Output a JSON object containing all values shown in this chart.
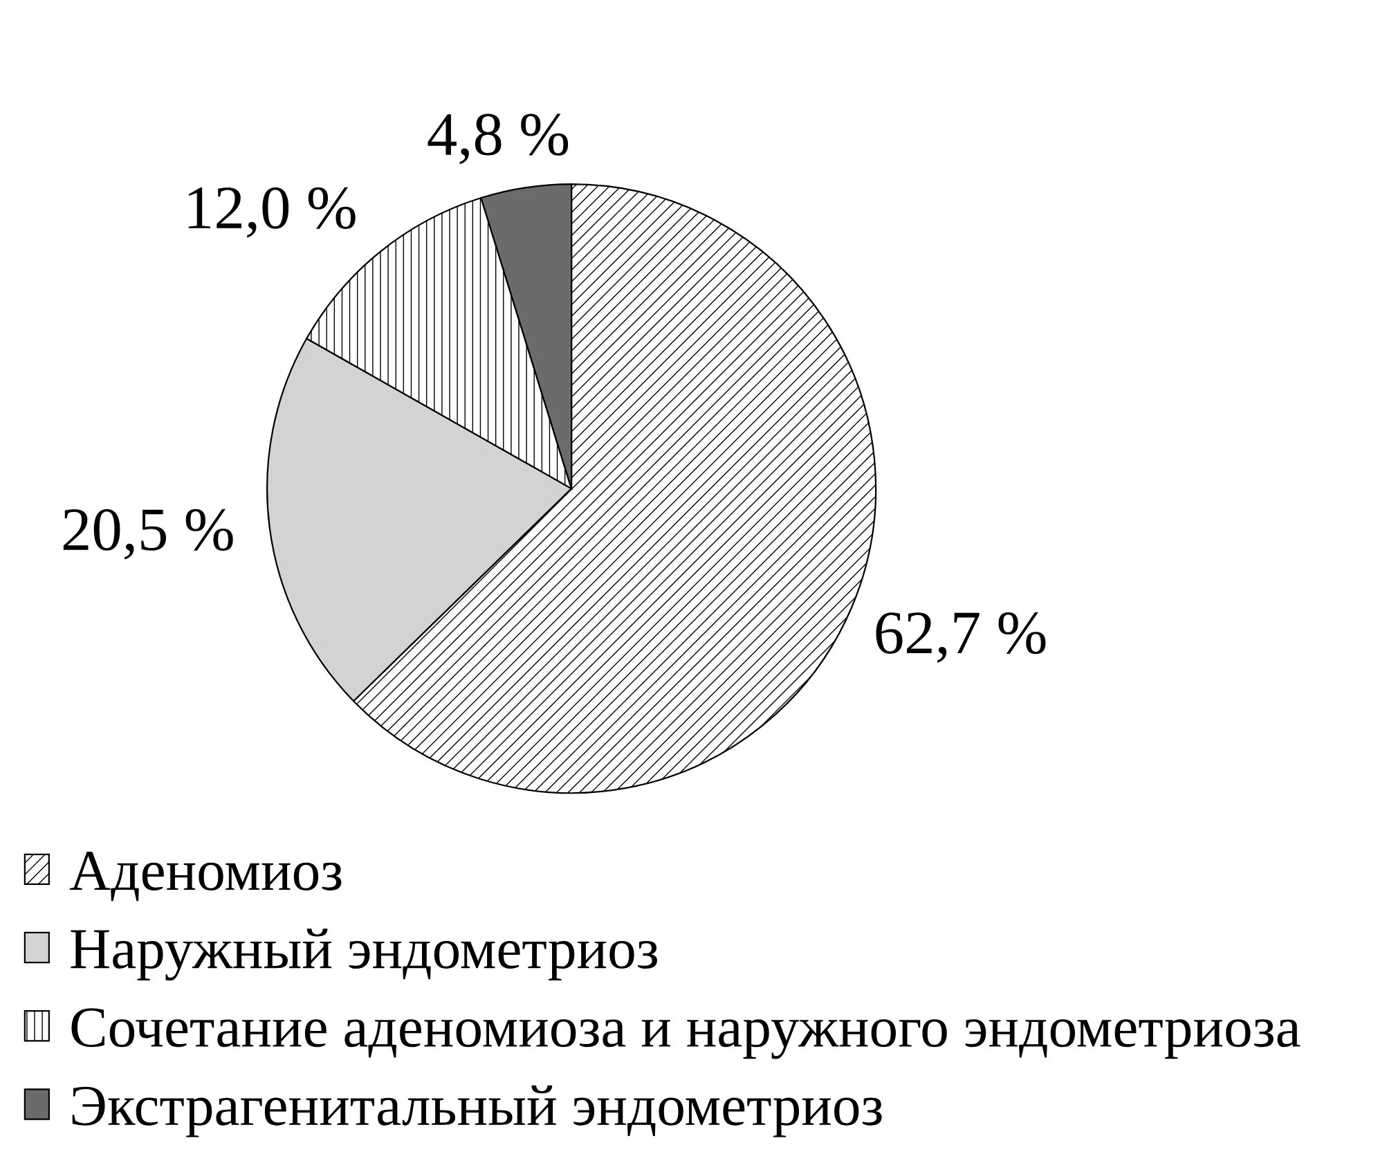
{
  "chart_data": {
    "type": "pie",
    "categories": [
      "Аденомиоз",
      "Наружный эндометриоз",
      "Сочетание аденомиоза и наружного эндометриоза",
      "Экстрагенитальный эндометриоз"
    ],
    "values": [
      62.7,
      20.5,
      12.0,
      4.8
    ],
    "colors": [
      "#000000",
      "#d3d3d3",
      "#000000",
      "#6b6b6b"
    ],
    "value_labels": [
      "62,7 %",
      "20,5 %",
      "12,0 %",
      "4,8 %"
    ],
    "legend": "bottom"
  }
}
